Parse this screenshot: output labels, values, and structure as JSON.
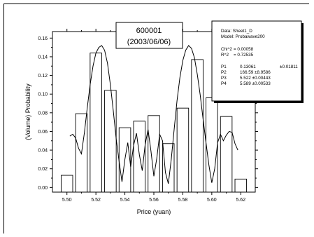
{
  "chart_data": {
    "type": "bar",
    "title_lines": [
      "600001",
      "(2003/06/06)"
    ],
    "xlabel": "Price (yuan)",
    "ylabel": "(Volume) Probability",
    "xlim": [
      5.49,
      5.63
    ],
    "ylim": [
      -0.005,
      0.167
    ],
    "x_ticks": [
      "5.50",
      "5.52",
      "5.54",
      "5.56",
      "5.58",
      "5.60",
      "5.62"
    ],
    "x_minor_ticks": [
      5.51,
      5.53,
      5.55,
      5.57,
      5.59,
      5.61
    ],
    "y_ticks": [
      "0.00",
      "0.02",
      "0.04",
      "0.06",
      "0.08",
      "0.10",
      "0.12",
      "0.14",
      "0.16"
    ],
    "bar_width": 0.008,
    "bars": [
      {
        "x": 5.5,
        "value": 0.013
      },
      {
        "x": 5.51,
        "value": 0.079
      },
      {
        "x": 5.52,
        "value": 0.144
      },
      {
        "x": 5.53,
        "value": 0.104
      },
      {
        "x": 5.54,
        "value": 0.064
      },
      {
        "x": 5.55,
        "value": 0.071
      },
      {
        "x": 5.56,
        "value": 0.077
      },
      {
        "x": 5.57,
        "value": 0.047
      },
      {
        "x": 5.58,
        "value": 0.085
      },
      {
        "x": 5.59,
        "value": 0.137
      },
      {
        "x": 5.6,
        "value": 0.096
      },
      {
        "x": 5.61,
        "value": 0.076
      },
      {
        "x": 5.62,
        "value": 0.009
      }
    ],
    "fit_curve": [
      [
        5.502,
        0.055
      ],
      [
        5.504,
        0.057
      ],
      [
        5.506,
        0.053
      ],
      [
        5.508,
        0.042
      ],
      [
        5.51,
        0.036
      ],
      [
        5.512,
        0.058
      ],
      [
        5.514,
        0.085
      ],
      [
        5.516,
        0.11
      ],
      [
        5.518,
        0.13
      ],
      [
        5.52,
        0.144
      ],
      [
        5.522,
        0.15
      ],
      [
        5.524,
        0.152
      ],
      [
        5.526,
        0.147
      ],
      [
        5.528,
        0.133
      ],
      [
        5.53,
        0.11
      ],
      [
        5.532,
        0.082
      ],
      [
        5.534,
        0.052
      ],
      [
        5.536,
        0.028
      ],
      [
        5.538,
        0.006
      ],
      [
        5.54,
        0.03
      ],
      [
        5.542,
        0.048
      ],
      [
        5.544,
        0.022
      ],
      [
        5.546,
        0.045
      ],
      [
        5.548,
        0.058
      ],
      [
        5.55,
        0.035
      ],
      [
        5.552,
        0.018
      ],
      [
        5.554,
        0.046
      ],
      [
        5.556,
        0.062
      ],
      [
        5.558,
        0.039
      ],
      [
        5.56,
        0.012
      ],
      [
        5.562,
        0.031
      ],
      [
        5.564,
        0.057
      ],
      [
        5.566,
        0.05
      ],
      [
        5.568,
        0.016
      ],
      [
        5.57,
        0.004
      ],
      [
        5.572,
        0.03
      ],
      [
        5.574,
        0.062
      ],
      [
        5.576,
        0.093
      ],
      [
        5.578,
        0.118
      ],
      [
        5.58,
        0.136
      ],
      [
        5.582,
        0.147
      ],
      [
        5.584,
        0.152
      ],
      [
        5.586,
        0.149
      ],
      [
        5.588,
        0.139
      ],
      [
        5.59,
        0.121
      ],
      [
        5.592,
        0.099
      ],
      [
        5.594,
        0.073
      ],
      [
        5.596,
        0.048
      ],
      [
        5.598,
        0.024
      ],
      [
        5.6,
        0.005
      ],
      [
        5.602,
        0.02
      ],
      [
        5.604,
        0.048
      ],
      [
        5.606,
        0.057
      ],
      [
        5.608,
        0.05
      ],
      [
        5.61,
        0.056
      ],
      [
        5.612,
        0.06
      ],
      [
        5.614,
        0.059
      ],
      [
        5.616,
        0.047
      ],
      [
        5.618,
        0.04
      ]
    ],
    "fit_stats": {
      "line1": "Data: Sheet1_D",
      "line2": "Model: Probawave200",
      "chi_label": "Chi^2",
      "chi_value": "= 0.00058",
      "r_label": "R^2",
      "r_value": "= 0.72535",
      "params": [
        {
          "name": "P1",
          "value": "0.13061",
          "error": "±0.01811"
        },
        {
          "name": "P2",
          "value": "166.59 ±8.9586",
          "error": ""
        },
        {
          "name": "P3",
          "value": "5.522  ±0.00443",
          "error": ""
        },
        {
          "name": "P4",
          "value": "5.589  ±0.00533",
          "error": ""
        }
      ]
    },
    "colors": {
      "bar_fill": "#ffffff",
      "bar_stroke": "#000000",
      "curve": "#000000"
    },
    "grid": false
  }
}
